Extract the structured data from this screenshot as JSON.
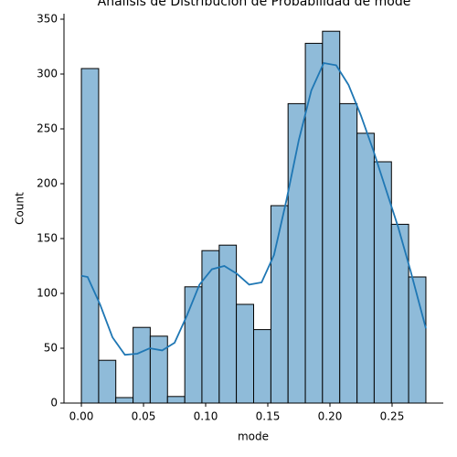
{
  "chart_data": {
    "type": "histogram",
    "title": "Análisis de Distribución de Probabilidad de mode",
    "xlabel": "mode",
    "ylabel": "Count",
    "bins": [
      0,
      0.0139,
      0.0277,
      0.0416,
      0.0554,
      0.0693,
      0.0832,
      0.097,
      0.1109,
      0.1247,
      0.1386,
      0.1525,
      0.1663,
      0.1802,
      0.194,
      0.2079,
      0.2218,
      0.2356,
      0.2495,
      0.2633,
      0.2772
    ],
    "values": [
      305,
      39,
      5,
      69,
      61,
      6,
      106,
      139,
      144,
      90,
      67,
      180,
      273,
      328,
      339,
      273,
      246,
      220,
      163,
      115
    ],
    "color": "#8fbbd9",
    "edgecolor": "#000000",
    "kde": {
      "color": "#1f77b4",
      "x": [
        0,
        0.005,
        0.015,
        0.025,
        0.035,
        0.045,
        0.055,
        0.065,
        0.075,
        0.085,
        0.095,
        0.105,
        0.115,
        0.125,
        0.135,
        0.145,
        0.155,
        0.165,
        0.175,
        0.185,
        0.195,
        0.205,
        0.215,
        0.225,
        0.235,
        0.245,
        0.255,
        0.265,
        0.2772
      ],
      "values": [
        116,
        115,
        90,
        60,
        44,
        45,
        50,
        48,
        55,
        80,
        108,
        122,
        125,
        118,
        108,
        110,
        135,
        185,
        240,
        285,
        310,
        308,
        290,
        262,
        230,
        195,
        160,
        120,
        68
      ]
    },
    "xlim": [
      -0.014,
      0.2912
    ],
    "ylim": [
      0,
      355
    ],
    "xticks": [
      {
        "value": 0,
        "label": "0.00"
      },
      {
        "value": 0.05,
        "label": "0.05"
      },
      {
        "value": 0.1,
        "label": "0.10"
      },
      {
        "value": 0.15,
        "label": "0.15"
      },
      {
        "value": 0.2,
        "label": "0.20"
      },
      {
        "value": 0.25,
        "label": "0.25"
      }
    ],
    "yticks": [
      0,
      50,
      100,
      150,
      200,
      250,
      300,
      350
    ]
  }
}
